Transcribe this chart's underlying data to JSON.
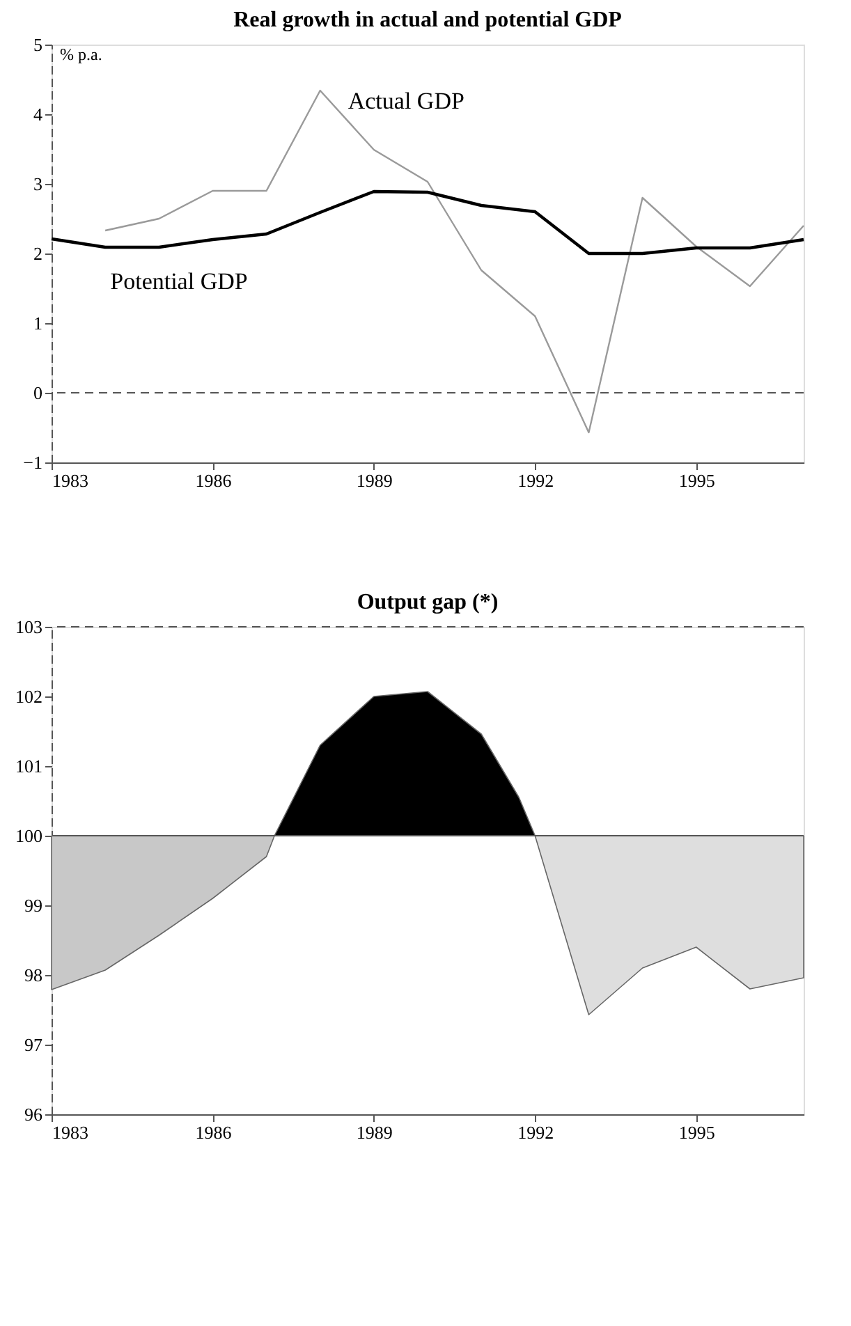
{
  "chart_data": [
    {
      "type": "line",
      "title": "Real growth in actual and potential GDP",
      "ylabel": "% p.a.",
      "xlim": [
        1983,
        1997
      ],
      "xticks": [
        1983,
        1986,
        1989,
        1992,
        1995
      ],
      "ylim": [
        -1,
        5
      ],
      "yticks": [
        -1,
        0,
        1,
        2,
        3,
        4,
        5
      ],
      "grid": false,
      "series": [
        {
          "name": "Actual GDP",
          "x": [
            1984,
            1985,
            1986,
            1987,
            1988,
            1989,
            1990,
            1991,
            1992,
            1993,
            1994,
            1995,
            1996,
            1997
          ],
          "values": [
            2.33,
            2.5,
            2.9,
            2.9,
            4.34,
            3.49,
            3.03,
            1.76,
            1.1,
            -0.57,
            2.8,
            2.1,
            1.53,
            2.4
          ],
          "color": "#9a9a9a"
        },
        {
          "name": "Potential GDP",
          "x": [
            1983,
            1984,
            1985,
            1986,
            1987,
            1988,
            1989,
            1990,
            1991,
            1992,
            1993,
            1994,
            1995,
            1996,
            1997
          ],
          "values": [
            2.21,
            2.09,
            2.09,
            2.2,
            2.28,
            2.59,
            2.89,
            2.88,
            2.69,
            2.6,
            2.0,
            2.0,
            2.08,
            2.08,
            2.2
          ],
          "color": "#000000"
        }
      ],
      "ref_lines": [
        {
          "axis": "y",
          "value": 0,
          "line_style": "dashed",
          "color": "#555555"
        }
      ]
    },
    {
      "type": "area",
      "title": "Output gap (*)",
      "xlim": [
        1983,
        1997
      ],
      "xticks": [
        1983,
        1986,
        1989,
        1992,
        1995
      ],
      "ylim": [
        96,
        103
      ],
      "yticks": [
        96,
        97,
        98,
        99,
        100,
        101,
        102,
        103
      ],
      "grid": false,
      "series": [
        {
          "x": [
            1983,
            1983,
            1984,
            1985,
            1986,
            1987,
            1987.15
          ],
          "values": [
            100,
            97.79,
            98.07,
            98.57,
            99.1,
            99.7,
            100
          ],
          "color": "#c8c8c8"
        },
        {
          "x": [
            1987.15,
            1988,
            1989,
            1990,
            1991,
            1991.7,
            1992
          ],
          "values": [
            100,
            101.3,
            102.0,
            102.07,
            101.46,
            100.55,
            100
          ],
          "color": "#000000"
        },
        {
          "x": [
            1992,
            1993,
            1994,
            1995,
            1996,
            1997,
            1997
          ],
          "values": [
            100,
            97.43,
            98.1,
            98.4,
            97.8,
            97.96,
            100
          ],
          "color": "#dedede"
        }
      ],
      "ref_lines": [
        {
          "axis": "y",
          "value": 100,
          "line_style": "solid",
          "color": "#555555"
        },
        {
          "axis": "y",
          "value": 103,
          "line_style": "dashed",
          "color": "#555555"
        }
      ]
    }
  ]
}
